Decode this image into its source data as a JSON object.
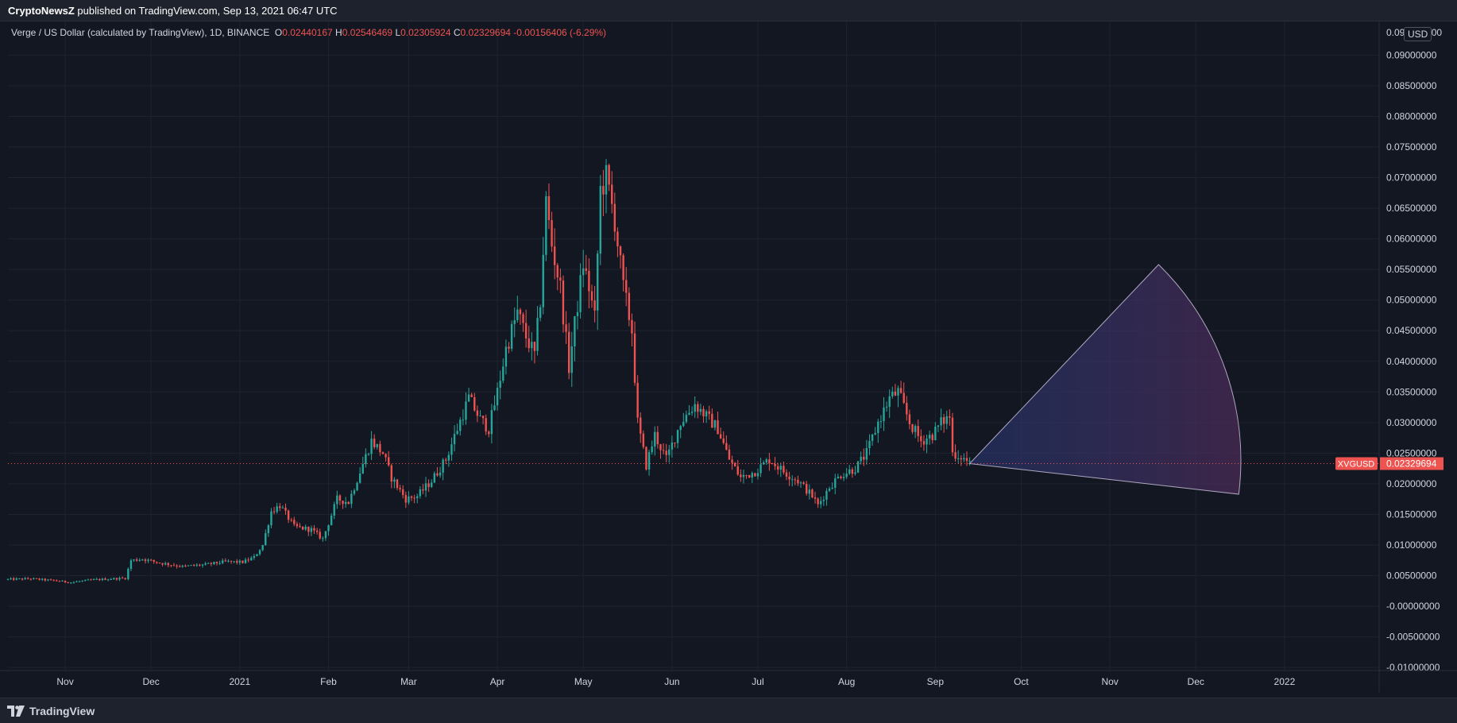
{
  "header": {
    "publisher": "CryptoNewsZ",
    "published_text": "published on TradingView.com, Sep 13, 2021 06:47 UTC"
  },
  "legend": {
    "symbol_text": "Verge / US Dollar (calculated by TradingView), 1D, BINANCE",
    "open_label": "O",
    "open_value": "0.02440167",
    "high_label": "H",
    "high_value": "0.02546469",
    "low_label": "L",
    "low_value": "0.02305924",
    "close_label": "C",
    "close_value": "0.02329694",
    "change_text": "-0.00156406 (-6.29%)"
  },
  "currency": "USD",
  "footer": {
    "brand": "TradingView"
  },
  "colors": {
    "background": "#131722",
    "up": "#26a69a",
    "down": "#ef5350",
    "grid": "#1f2330",
    "axis_text": "#d1d4dc",
    "fan_fill_start": "#2a3a7a",
    "fan_fill_end": "#4a2a55"
  },
  "chart_data": {
    "type": "candlestick",
    "symbol": "XVGUSD",
    "last_price_label": "0.02329694",
    "last_price": 0.02329694,
    "ylim": [
      -0.0105,
      0.0955
    ],
    "y_ticks": [
      "0.09000000",
      "0.08500000",
      "0.08000000",
      "0.07500000",
      "0.07000000",
      "0.06500000",
      "0.06000000",
      "0.05500000",
      "0.05000000",
      "0.04500000",
      "0.04000000",
      "0.03500000",
      "0.03000000",
      "0.02500000",
      "0.02000000",
      "0.01500000",
      "0.01000000",
      "0.00500000",
      "-0.00000000",
      "-0.00500000",
      "-0.01000000"
    ],
    "y_tick_values": [
      0.09,
      0.085,
      0.08,
      0.075,
      0.07,
      0.065,
      0.06,
      0.055,
      0.05,
      0.045,
      0.04,
      0.035,
      0.03,
      0.025,
      0.02,
      0.015,
      0.01,
      0.005,
      0,
      -0.005,
      -0.01
    ],
    "top_tick_partial": "0.095000000",
    "x_range": [
      "2020-10-12",
      "2022-01-31"
    ],
    "x_ticks": [
      {
        "label": "Nov",
        "date": "2020-11-01"
      },
      {
        "label": "Dec",
        "date": "2020-12-01"
      },
      {
        "label": "2021",
        "date": "2021-01-01"
      },
      {
        "label": "Feb",
        "date": "2021-02-01"
      },
      {
        "label": "Mar",
        "date": "2021-03-01"
      },
      {
        "label": "Apr",
        "date": "2021-04-01"
      },
      {
        "label": "May",
        "date": "2021-05-01"
      },
      {
        "label": "Jun",
        "date": "2021-06-01"
      },
      {
        "label": "Jul",
        "date": "2021-07-01"
      },
      {
        "label": "Aug",
        "date": "2021-08-01"
      },
      {
        "label": "Sep",
        "date": "2021-09-01"
      },
      {
        "label": "Oct",
        "date": "2021-10-01"
      },
      {
        "label": "Nov",
        "date": "2021-11-01"
      },
      {
        "label": "Dec",
        "date": "2021-12-01"
      },
      {
        "label": "2022",
        "date": "2022-01-01"
      }
    ],
    "close_path": [
      [
        "2020-10-12",
        0.0044
      ],
      [
        "2020-10-20",
        0.0045
      ],
      [
        "2020-10-28",
        0.0042
      ],
      [
        "2020-11-03",
        0.0039
      ],
      [
        "2020-11-10",
        0.0043
      ],
      [
        "2020-11-18",
        0.0045
      ],
      [
        "2020-11-22",
        0.0046
      ],
      [
        "2020-11-24",
        0.0075
      ],
      [
        "2020-11-28",
        0.0077
      ],
      [
        "2020-12-05",
        0.007
      ],
      [
        "2020-12-12",
        0.0065
      ],
      [
        "2020-12-20",
        0.0068
      ],
      [
        "2020-12-27",
        0.0073
      ],
      [
        "2021-01-02",
        0.0072
      ],
      [
        "2021-01-06",
        0.008
      ],
      [
        "2021-01-09",
        0.01
      ],
      [
        "2021-01-12",
        0.0155
      ],
      [
        "2021-01-15",
        0.0165
      ],
      [
        "2021-01-20",
        0.013
      ],
      [
        "2021-01-26",
        0.0125
      ],
      [
        "2021-01-30",
        0.011
      ],
      [
        "2021-02-04",
        0.0175
      ],
      [
        "2021-02-08",
        0.017
      ],
      [
        "2021-02-12",
        0.022
      ],
      [
        "2021-02-16",
        0.027
      ],
      [
        "2021-02-20",
        0.025
      ],
      [
        "2021-02-23",
        0.021
      ],
      [
        "2021-02-28",
        0.0175
      ],
      [
        "2021-03-04",
        0.018
      ],
      [
        "2021-03-09",
        0.0205
      ],
      [
        "2021-03-14",
        0.024
      ],
      [
        "2021-03-18",
        0.029
      ],
      [
        "2021-03-22",
        0.034
      ],
      [
        "2021-03-26",
        0.0305
      ],
      [
        "2021-03-29",
        0.029
      ],
      [
        "2021-04-01",
        0.035
      ],
      [
        "2021-04-04",
        0.042
      ],
      [
        "2021-04-08",
        0.048
      ],
      [
        "2021-04-11",
        0.044
      ],
      [
        "2021-04-14",
        0.041
      ],
      [
        "2021-04-16",
        0.05
      ],
      [
        "2021-04-18",
        0.066
      ],
      [
        "2021-04-20",
        0.059
      ],
      [
        "2021-04-23",
        0.052
      ],
      [
        "2021-04-26",
        0.039
      ],
      [
        "2021-04-28",
        0.046
      ],
      [
        "2021-05-01",
        0.056
      ],
      [
        "2021-05-03",
        0.052
      ],
      [
        "2021-05-05",
        0.047
      ],
      [
        "2021-05-07",
        0.068
      ],
      [
        "2021-05-09",
        0.07
      ],
      [
        "2021-05-12",
        0.063
      ],
      [
        "2021-05-15",
        0.052
      ],
      [
        "2021-05-18",
        0.045
      ],
      [
        "2021-05-20",
        0.03
      ],
      [
        "2021-05-23",
        0.023
      ],
      [
        "2021-05-26",
        0.028
      ],
      [
        "2021-05-30",
        0.024
      ],
      [
        "2021-06-04",
        0.03
      ],
      [
        "2021-06-09",
        0.033
      ],
      [
        "2021-06-13",
        0.031
      ],
      [
        "2021-06-17",
        0.029
      ],
      [
        "2021-06-21",
        0.024
      ],
      [
        "2021-06-25",
        0.021
      ],
      [
        "2021-06-30",
        0.022
      ],
      [
        "2021-07-05",
        0.024
      ],
      [
        "2021-07-10",
        0.022
      ],
      [
        "2021-07-15",
        0.0205
      ],
      [
        "2021-07-20",
        0.018
      ],
      [
        "2021-07-22",
        0.0165
      ],
      [
        "2021-07-26",
        0.0195
      ],
      [
        "2021-07-30",
        0.0215
      ],
      [
        "2021-08-04",
        0.0225
      ],
      [
        "2021-08-08",
        0.025
      ],
      [
        "2021-08-12",
        0.03
      ],
      [
        "2021-08-16",
        0.034
      ],
      [
        "2021-08-19",
        0.035
      ],
      [
        "2021-08-23",
        0.03
      ],
      [
        "2021-08-27",
        0.027
      ],
      [
        "2021-08-31",
        0.028
      ],
      [
        "2021-09-03",
        0.03
      ],
      [
        "2021-09-06",
        0.031
      ],
      [
        "2021-09-07",
        0.025
      ],
      [
        "2021-09-10",
        0.0245
      ],
      [
        "2021-09-13",
        0.0233
      ]
    ],
    "annotation": {
      "type": "fan-sector",
      "origin": [
        "2021-09-13",
        0.0233
      ],
      "edge_top": [
        "2021-11-18",
        0.0558
      ],
      "edge_bottom": [
        "2021-12-16",
        0.0183
      ]
    }
  }
}
